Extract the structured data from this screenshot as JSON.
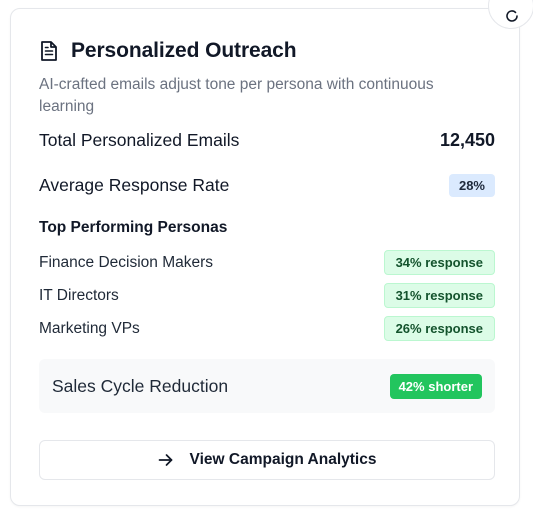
{
  "card": {
    "title": "Personalized Outreach",
    "title_icon": "document-icon",
    "description": "AI-crafted emails adjust tone per persona with continuous learning"
  },
  "metrics": {
    "total_emails_label": "Total Personalized Emails",
    "total_emails_value": "12,450",
    "response_rate_label": "Average Response Rate",
    "response_rate_value": "28%"
  },
  "personas": {
    "section_title": "Top Performing Personas",
    "items": [
      {
        "label": "Finance Decision Makers",
        "value": "34% response"
      },
      {
        "label": "IT Directors",
        "value": "31% response"
      },
      {
        "label": "Marketing VPs",
        "value": "26% response"
      }
    ]
  },
  "highlight": {
    "label": "Sales Cycle Reduction",
    "value": "42% shorter"
  },
  "action": {
    "label": "View Campaign Analytics",
    "icon": "arrow-right-icon"
  },
  "colors": {
    "accent_green": "#22c55e",
    "badge_green_bg": "#dcfce7",
    "badge_blue_bg": "#dbeafe",
    "muted_text": "#6b7280"
  }
}
